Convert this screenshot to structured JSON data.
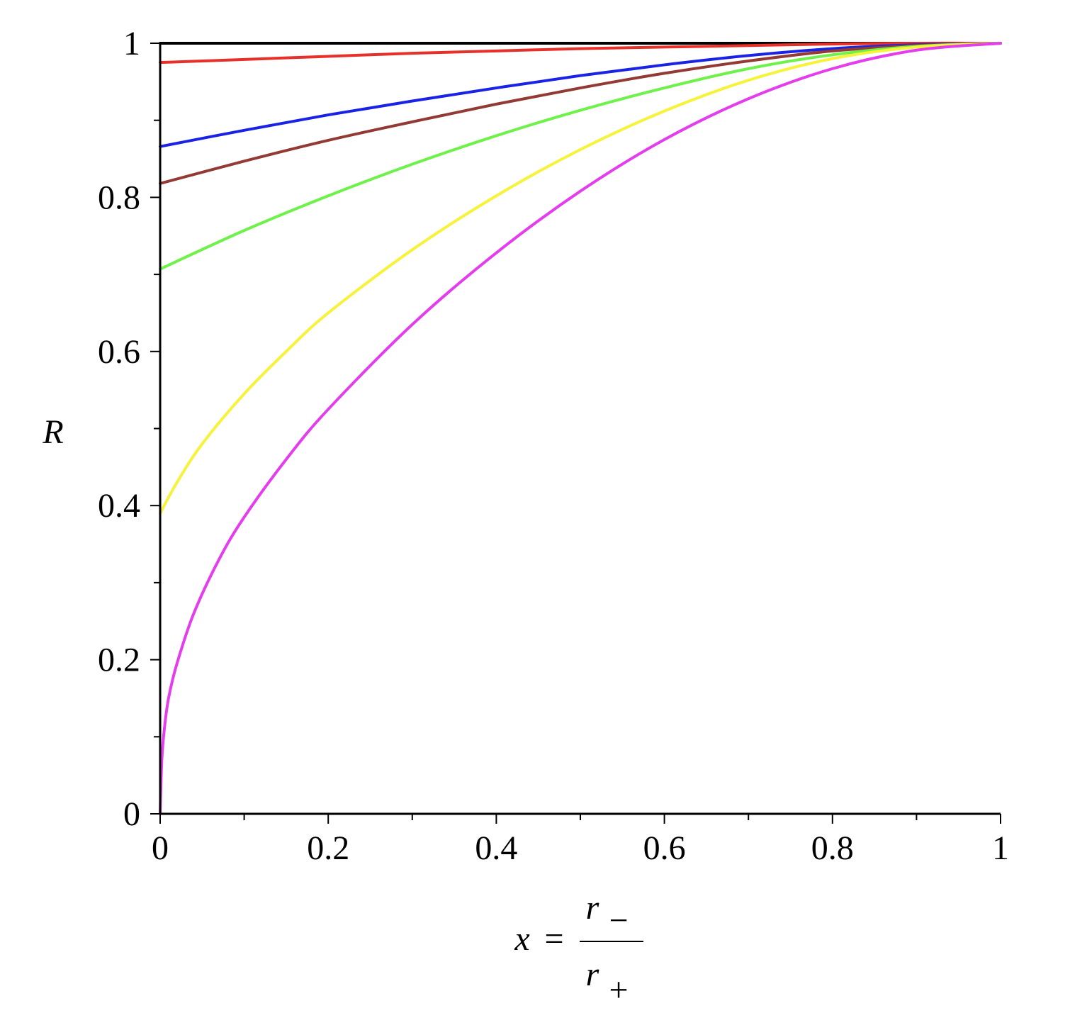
{
  "chart_data": {
    "type": "line",
    "title": "",
    "xlabel": {
      "var": "x",
      "eq": "=",
      "num": "r",
      "num_sub": "−",
      "den": "r",
      "den_sub": "+"
    },
    "ylabel": "R",
    "xlim": [
      0,
      1
    ],
    "ylim": [
      0,
      1
    ],
    "xticks": [
      0,
      0.2,
      0.4,
      0.6,
      0.8,
      1
    ],
    "xtick_labels": [
      "0",
      "0.2",
      "0.4",
      "0.6",
      "0.8",
      "1"
    ],
    "yticks": [
      0,
      0.2,
      0.4,
      0.6,
      0.8,
      1
    ],
    "ytick_labels": [
      "0",
      "0.2",
      "0.4",
      "0.6",
      "0.8",
      "1"
    ],
    "grid": false,
    "legend": "none",
    "series": [
      {
        "color": "#000000",
        "x": [
          0,
          0.1,
          0.2,
          0.3,
          0.4,
          0.5,
          0.6,
          0.7,
          0.8,
          0.9,
          1
        ],
        "y": [
          1,
          1,
          1,
          1,
          1,
          1,
          1,
          1,
          1,
          1,
          1
        ]
      },
      {
        "color": "#e8302a",
        "x": [
          0,
          0.1,
          0.2,
          0.3,
          0.4,
          0.5,
          0.6,
          0.7,
          0.8,
          0.9,
          1
        ],
        "y": [
          0.975,
          0.979,
          0.983,
          0.987,
          0.99,
          0.993,
          0.995,
          0.997,
          0.999,
          1.0,
          1.0
        ]
      },
      {
        "color": "#1a22e6",
        "x": [
          0,
          0.1,
          0.2,
          0.3,
          0.4,
          0.5,
          0.6,
          0.7,
          0.8,
          0.9,
          1
        ],
        "y": [
          0.866,
          0.887,
          0.907,
          0.925,
          0.942,
          0.958,
          0.972,
          0.984,
          0.993,
          0.998,
          1.0
        ]
      },
      {
        "color": "#923a33",
        "x": [
          0,
          0.1,
          0.2,
          0.3,
          0.4,
          0.5,
          0.6,
          0.7,
          0.8,
          0.9,
          1
        ],
        "y": [
          0.818,
          0.847,
          0.874,
          0.898,
          0.921,
          0.942,
          0.961,
          0.977,
          0.99,
          0.997,
          1.0
        ]
      },
      {
        "color": "#6ef24a",
        "x": [
          0,
          0.1,
          0.2,
          0.3,
          0.4,
          0.5,
          0.6,
          0.7,
          0.8,
          0.9,
          1
        ],
        "y": [
          0.707,
          0.757,
          0.802,
          0.843,
          0.88,
          0.913,
          0.942,
          0.967,
          0.985,
          0.996,
          1.0
        ]
      },
      {
        "color": "#f7f23a",
        "x": [
          0,
          0.02,
          0.05,
          0.1,
          0.15,
          0.2,
          0.3,
          0.4,
          0.5,
          0.6,
          0.7,
          0.8,
          0.9,
          1
        ],
        "y": [
          0.39,
          0.43,
          0.48,
          0.545,
          0.6,
          0.65,
          0.732,
          0.802,
          0.862,
          0.912,
          0.952,
          0.98,
          0.995,
          1.0
        ]
      },
      {
        "color": "#e43ded",
        "x": [
          0,
          0.002,
          0.005,
          0.01,
          0.02,
          0.04,
          0.07,
          0.1,
          0.15,
          0.2,
          0.3,
          0.4,
          0.5,
          0.6,
          0.7,
          0.8,
          0.9,
          1
        ],
        "y": [
          0,
          0.07,
          0.11,
          0.15,
          0.195,
          0.26,
          0.33,
          0.385,
          0.46,
          0.525,
          0.635,
          0.728,
          0.808,
          0.875,
          0.928,
          0.967,
          0.991,
          1.0
        ]
      }
    ]
  }
}
